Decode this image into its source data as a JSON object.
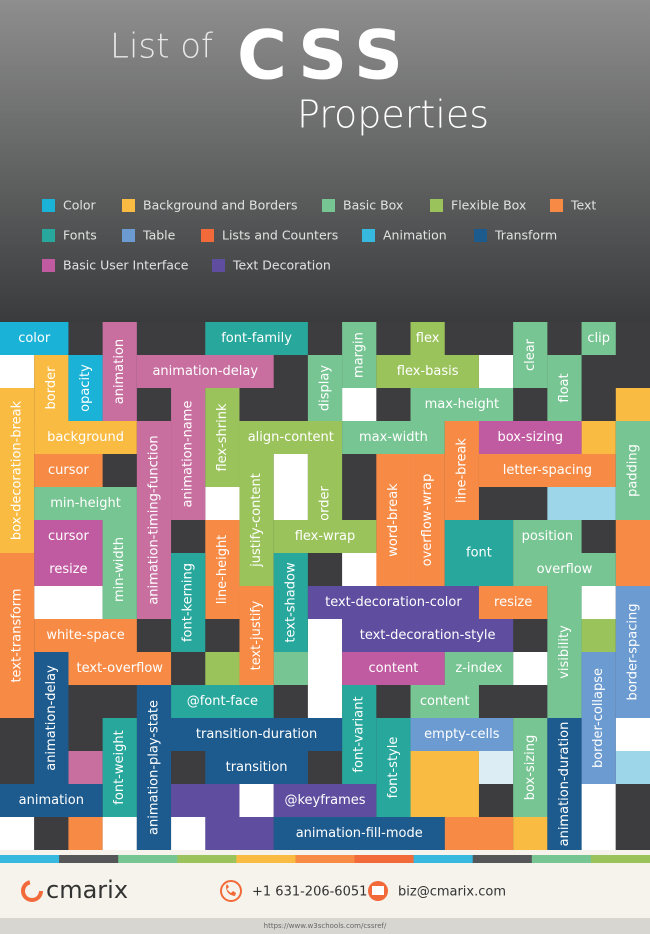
{
  "header": {
    "line1": "List of",
    "highlight": "CSS",
    "line2": "Properties"
  },
  "legend": [
    {
      "label": "Color",
      "color": "#1ab2d6"
    },
    {
      "label": "Background and Borders",
      "color": "#f9bb42"
    },
    {
      "label": "Basic Box",
      "color": "#77c593"
    },
    {
      "label": "Flexible Box",
      "color": "#9bc35c"
    },
    {
      "label": "Text",
      "color": "#f78b46"
    },
    {
      "label": "Fonts",
      "color": "#28a79c"
    },
    {
      "label": "Table",
      "color": "#6b9bd1"
    },
    {
      "label": "Lists and Counters",
      "color": "#f26a3a"
    },
    {
      "label": "Animation",
      "color": "#37b8de"
    },
    {
      "label": "Transform",
      "color": "#1d5b8f"
    },
    {
      "label": "Basic User Interface",
      "color": "#c15ba1"
    },
    {
      "label": "Text Decoration",
      "color": "#5f4ea0"
    }
  ],
  "tiles": [
    {
      "label": "color",
      "color": "#1ab2d6"
    },
    {
      "label": "border",
      "color": "#f9bb42"
    },
    {
      "label": "opacity",
      "color": "#1ab2d6"
    },
    {
      "label": "animation",
      "color": "#c86fa0"
    },
    {
      "label": "animation-delay",
      "color": "#c86fa0"
    },
    {
      "label": "font-family",
      "color": "#28a79c"
    },
    {
      "label": "display",
      "color": "#77c593"
    },
    {
      "label": "margin",
      "color": "#77c593"
    },
    {
      "label": "flex",
      "color": "#9bc35c"
    },
    {
      "label": "flex-basis",
      "color": "#9bc35c"
    },
    {
      "label": "clear",
      "color": "#77c593"
    },
    {
      "label": "clip",
      "color": "#77c593"
    },
    {
      "label": "float",
      "color": "#77c593"
    },
    {
      "label": "max-height",
      "color": "#77c593"
    },
    {
      "label": "box-decoration-break",
      "color": "#f9bb42"
    },
    {
      "label": "background",
      "color": "#f9bb42"
    },
    {
      "label": "animation-timing-function",
      "color": "#c86fa0"
    },
    {
      "label": "animation-name",
      "color": "#c86fa0"
    },
    {
      "label": "flex-shrink",
      "color": "#9bc35c"
    },
    {
      "label": "align-content",
      "color": "#9bc35c"
    },
    {
      "label": "max-width",
      "color": "#77c593"
    },
    {
      "label": "box-sizing",
      "color": "#c15ba1"
    },
    {
      "label": "cursor",
      "color": "#f78b46"
    },
    {
      "label": "order",
      "color": "#9bc35c"
    },
    {
      "label": "word-break",
      "color": "#f78b46"
    },
    {
      "label": "overflow-wrap",
      "color": "#f78b46"
    },
    {
      "label": "line-break",
      "color": "#f78b46"
    },
    {
      "label": "letter-spacing",
      "color": "#f78b46"
    },
    {
      "label": "padding",
      "color": "#77c593"
    },
    {
      "label": "min-height",
      "color": "#77c593"
    },
    {
      "label": "justify-content",
      "color": "#9bc35c"
    },
    {
      "label": "cursor",
      "color": "#c15ba1"
    },
    {
      "label": "resize",
      "color": "#c15ba1"
    },
    {
      "label": "min-width",
      "color": "#77c593"
    },
    {
      "label": "flex-wrap",
      "color": "#9bc35c"
    },
    {
      "label": "font",
      "color": "#28a79c"
    },
    {
      "label": "position",
      "color": "#77c593"
    },
    {
      "label": "overflow",
      "color": "#77c593"
    },
    {
      "label": "line-height",
      "color": "#f78b46"
    },
    {
      "label": "font-kerning",
      "color": "#28a79c"
    },
    {
      "label": "text-shadow",
      "color": "#28a79c"
    },
    {
      "label": "text-justify",
      "color": "#f78b46"
    },
    {
      "label": "text-decoration-color",
      "color": "#5f4ea0"
    },
    {
      "label": "resize",
      "color": "#f78b46"
    },
    {
      "label": "text-transform",
      "color": "#f78b46"
    },
    {
      "label": "white-space",
      "color": "#f78b46"
    },
    {
      "label": "text-decoration-style",
      "color": "#5f4ea0"
    },
    {
      "label": "visibility",
      "color": "#77c593"
    },
    {
      "label": "border-spacing",
      "color": "#6b9bd1"
    },
    {
      "label": "text-overflow",
      "color": "#f78b46"
    },
    {
      "label": "animation-delay",
      "color": "#1d5b8f"
    },
    {
      "label": "content",
      "color": "#c15ba1"
    },
    {
      "label": "z-index",
      "color": "#77c593"
    },
    {
      "label": "border-collapse",
      "color": "#6b9bd1"
    },
    {
      "label": "@font-face",
      "color": "#28a79c"
    },
    {
      "label": "font-variant",
      "color": "#28a79c"
    },
    {
      "label": "content",
      "color": "#77c593"
    },
    {
      "label": "animation-play-state",
      "color": "#1d5b8f"
    },
    {
      "label": "transition-duration",
      "color": "#1d5b8f"
    },
    {
      "label": "font-style",
      "color": "#28a79c"
    },
    {
      "label": "empty-cells",
      "color": "#6b9bd1"
    },
    {
      "label": "box-sizing",
      "color": "#77c593"
    },
    {
      "label": "animation-duration",
      "color": "#1d5b8f"
    },
    {
      "label": "font-weight",
      "color": "#28a79c"
    },
    {
      "label": "transition",
      "color": "#1d5b8f"
    },
    {
      "label": "animation",
      "color": "#1d5b8f"
    },
    {
      "label": "@keyframes",
      "color": "#5f4ea0"
    },
    {
      "label": "animation-fill-mode",
      "color": "#1d5b8f"
    }
  ],
  "footer": {
    "brand": "cmarix",
    "phone": "+1 631-206-6051",
    "email": "biz@cmarix.com",
    "source": "https://www.w3schools.com/cssref/"
  }
}
